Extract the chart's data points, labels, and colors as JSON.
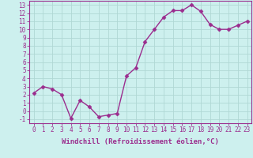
{
  "x": [
    0,
    1,
    2,
    3,
    4,
    5,
    6,
    7,
    8,
    9,
    10,
    11,
    12,
    13,
    14,
    15,
    16,
    17,
    18,
    19,
    20,
    21,
    22,
    23
  ],
  "y": [
    2.2,
    3.0,
    2.7,
    2.0,
    -0.9,
    1.3,
    0.5,
    -0.7,
    -0.5,
    -0.3,
    4.3,
    5.3,
    8.5,
    10.0,
    11.5,
    12.3,
    12.3,
    13.0,
    12.2,
    10.6,
    10.0,
    10.0,
    10.5,
    11.0
  ],
  "line_color": "#9b2d8e",
  "marker": "D",
  "markersize": 2.5,
  "linewidth": 1.0,
  "background_color": "#cdf0ee",
  "grid_color": "#b0d8d4",
  "xlabel": "Windchill (Refroidissement éolien,°C)",
  "ylabel": "",
  "title": "",
  "xlim": [
    -0.5,
    23.5
  ],
  "ylim": [
    -1.5,
    13.5
  ],
  "xticks": [
    0,
    1,
    2,
    3,
    4,
    5,
    6,
    7,
    8,
    9,
    10,
    11,
    12,
    13,
    14,
    15,
    16,
    17,
    18,
    19,
    20,
    21,
    22,
    23
  ],
  "yticks": [
    -1,
    0,
    1,
    2,
    3,
    4,
    5,
    6,
    7,
    8,
    9,
    10,
    11,
    12,
    13
  ],
  "xlabel_fontsize": 6.5,
  "tick_fontsize": 5.5,
  "tick_color": "#9b2d8e",
  "label_color": "#9b2d8e",
  "axis_color": "#9b2d8e"
}
